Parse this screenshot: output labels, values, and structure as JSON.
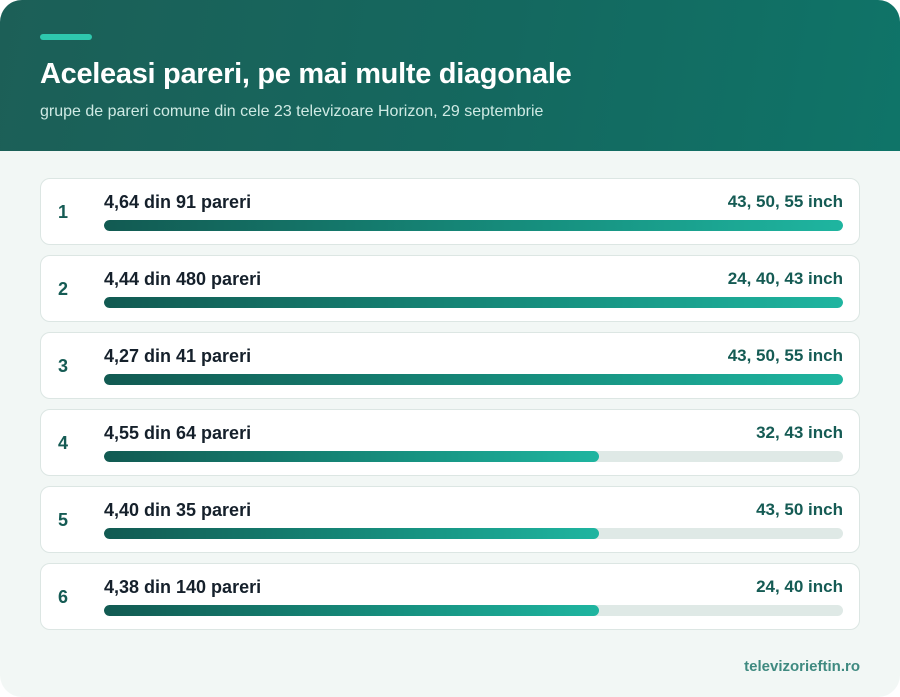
{
  "header": {
    "title": "Aceleasi pareri, pe mai multe diagonale",
    "subtitle": "grupe de pareri comune din cele 23 televizoare Horizon, 29 septembrie"
  },
  "footer": {
    "source": "televizorieftin.ro"
  },
  "colors": {
    "header": "#14685f",
    "accent": "#2ec8ae",
    "bar_start": "#125a52",
    "bar_end": "#1fb5a0",
    "track": "#dfe9e6"
  },
  "chart_data": {
    "type": "bar",
    "orientation": "horizontal",
    "rows": [
      {
        "rank": "1",
        "label": "4,64 din 91 pareri",
        "sizes": "43, 50, 55 inch",
        "fill": 1.0
      },
      {
        "rank": "2",
        "label": "4,44 din 480 pareri",
        "sizes": "24, 40, 43 inch",
        "fill": 1.0
      },
      {
        "rank": "3",
        "label": "4,27 din 41 pareri",
        "sizes": "43, 50, 55 inch",
        "fill": 1.0
      },
      {
        "rank": "4",
        "label": "4,55 din 64 pareri",
        "sizes": "32, 43 inch",
        "fill": 0.67
      },
      {
        "rank": "5",
        "label": "4,40 din 35 pareri",
        "sizes": "43, 50 inch",
        "fill": 0.67
      },
      {
        "rank": "6",
        "label": "4,38 din 140 pareri",
        "sizes": "24, 40 inch",
        "fill": 0.67
      }
    ]
  }
}
